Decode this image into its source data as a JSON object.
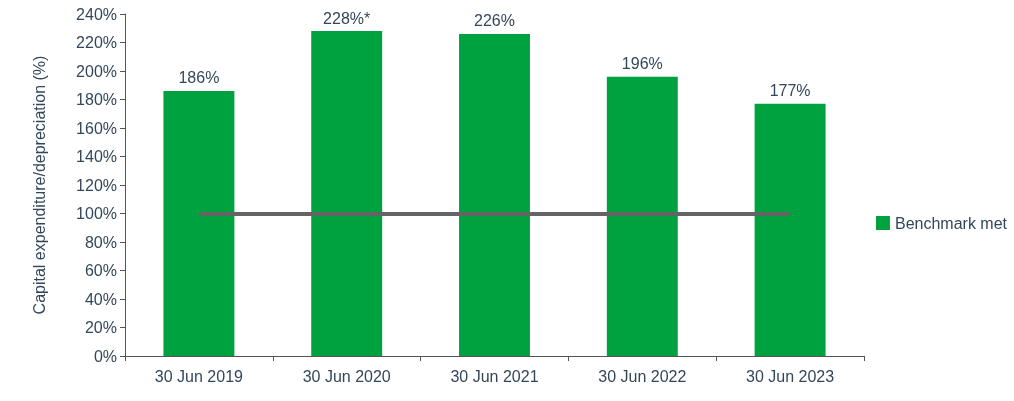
{
  "chart_data": {
    "type": "bar",
    "ylabel": "Capital expenditure/depreciation (%)",
    "categories": [
      "30 Jun 2019",
      "30 Jun 2020",
      "30 Jun 2021",
      "30 Jun 2022",
      "30 Jun 2023"
    ],
    "series": [
      {
        "name": "Benchmark met",
        "color": "#00a23f",
        "values": [
          186,
          228,
          226,
          196,
          177
        ],
        "value_labels": [
          "186%",
          "228%*",
          "226%",
          "196%",
          "177%"
        ]
      }
    ],
    "ylim": [
      0,
      240
    ],
    "yticks": [
      {
        "value": 0,
        "label": "0%"
      },
      {
        "value": 20,
        "label": "20%"
      },
      {
        "value": 40,
        "label": "40%"
      },
      {
        "value": 60,
        "label": "60%"
      },
      {
        "value": 80,
        "label": "80%"
      },
      {
        "value": 100,
        "label": "100%"
      },
      {
        "value": 120,
        "label": "120%"
      },
      {
        "value": 140,
        "label": "140%"
      },
      {
        "value": 160,
        "label": "160%"
      },
      {
        "value": 180,
        "label": "180%"
      },
      {
        "value": 200,
        "label": "200%"
      },
      {
        "value": 220,
        "label": "220%"
      },
      {
        "value": 240,
        "label": "240%"
      }
    ],
    "ref_lines": [
      {
        "axis": "y",
        "value": 100,
        "color": "#646464"
      }
    ],
    "grid": false,
    "legend": "right"
  }
}
